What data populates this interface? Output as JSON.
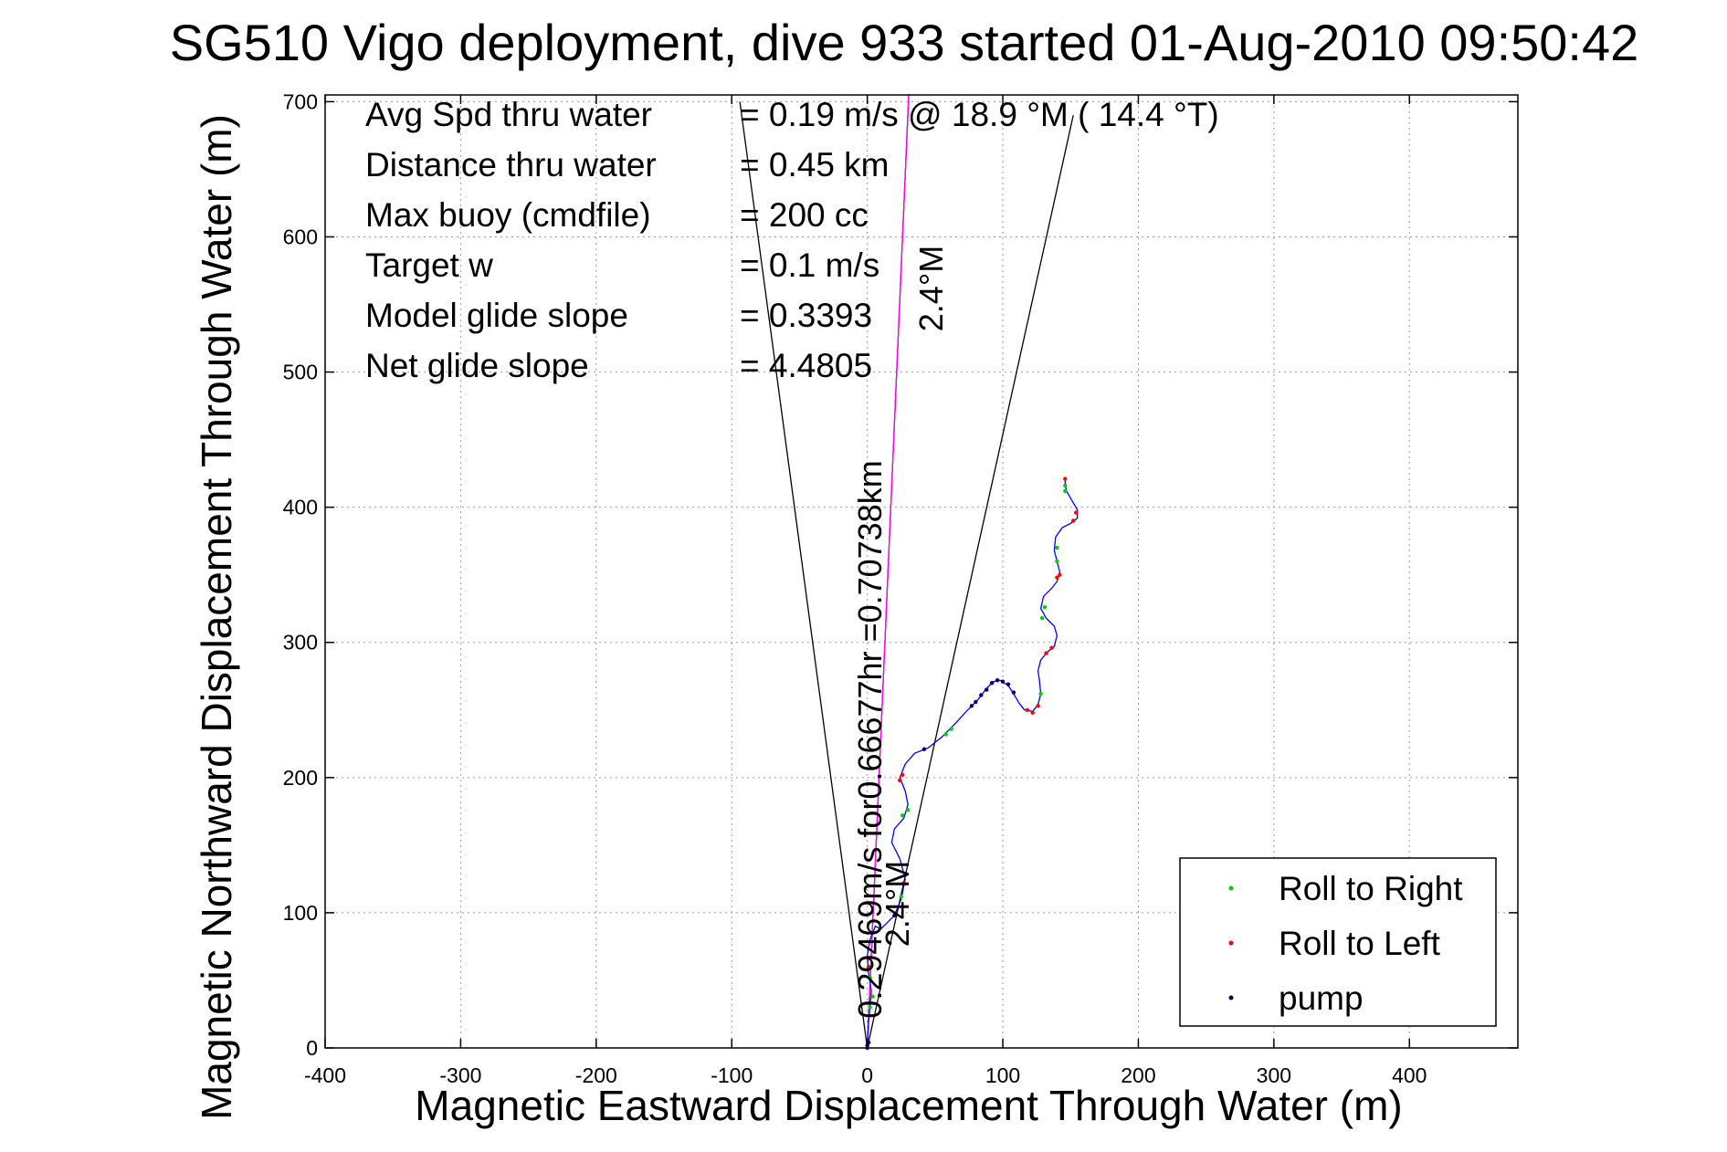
{
  "chart_data": {
    "type": "line",
    "title": "SG510 Vigo deployment, dive 933 started 01-Aug-2010 09:50:42",
    "xlabel": "Magnetic Eastward Displacement Through Water (m)",
    "ylabel": "Magnetic Northward Displacement Through Water (m)",
    "xlim": [
      -400,
      480
    ],
    "ylim": [
      0,
      705
    ],
    "xticks": [
      -400,
      -300,
      -200,
      -100,
      0,
      100,
      200,
      300,
      400
    ],
    "xtick_labels": [
      "-400",
      "-300",
      "-200",
      "-100",
      "0",
      "100",
      "200",
      "300",
      "400"
    ],
    "yticks": [
      0,
      100,
      200,
      300,
      400,
      500,
      600,
      700
    ],
    "ytick_labels": [
      "0",
      "100",
      "200",
      "300",
      "400",
      "500",
      "600",
      "700"
    ],
    "grid": true,
    "legend_position": "bottom-right",
    "stats": [
      {
        "label": "Avg Spd thru water",
        "value": "=  0.19 m/s @   18.9 °M ( 14.4 °T)"
      },
      {
        "label": "Distance thru water",
        "value": "=  0.45 km"
      },
      {
        "label": "Max buoy (cmdfile)",
        "value": "= 200 cc"
      },
      {
        "label": "Target w",
        "value": "= 0.1 m/s"
      },
      {
        "label": "Model glide slope",
        "value": "= 0.3393"
      },
      {
        "label": "Net glide slope",
        "value": "= 4.4805"
      }
    ],
    "annotations": {
      "current_label": "0.29469m/s for0.66677hr =0.70738km",
      "heading_upper": "2.4°M",
      "heading_lower": "2.4°M"
    },
    "guide_lines": [
      {
        "color": "#000000",
        "points": [
          [
            0,
            0
          ],
          [
            -94,
            700
          ]
        ]
      },
      {
        "color": "#000000",
        "points": [
          [
            0,
            0
          ],
          [
            152,
            690
          ]
        ]
      },
      {
        "color": "#000000",
        "points": [
          [
            0,
            0
          ],
          [
            36,
            830
          ]
        ]
      },
      {
        "color": "#ff00ff",
        "points": [
          [
            0,
            0
          ],
          [
            36,
            830
          ]
        ]
      }
    ],
    "series": [
      {
        "name": "track",
        "color": "#0000ff",
        "points": [
          [
            0,
            0
          ],
          [
            1,
            20
          ],
          [
            3,
            42
          ],
          [
            1,
            55
          ],
          [
            0,
            68
          ],
          [
            2,
            80
          ],
          [
            6,
            90
          ],
          [
            10,
            88
          ],
          [
            14,
            92
          ],
          [
            20,
            98
          ],
          [
            25,
            110
          ],
          [
            28,
            125
          ],
          [
            24,
            140
          ],
          [
            18,
            152
          ],
          [
            20,
            162
          ],
          [
            27,
            170
          ],
          [
            30,
            180
          ],
          [
            28,
            190
          ],
          [
            24,
            200
          ],
          [
            28,
            210
          ],
          [
            35,
            218
          ],
          [
            45,
            222
          ],
          [
            55,
            230
          ],
          [
            65,
            240
          ],
          [
            74,
            250
          ],
          [
            82,
            258
          ],
          [
            88,
            266
          ],
          [
            93,
            271
          ],
          [
            98,
            272
          ],
          [
            104,
            268
          ],
          [
            108,
            262
          ],
          [
            112,
            255
          ],
          [
            116,
            250
          ],
          [
            122,
            249
          ],
          [
            126,
            254
          ],
          [
            128,
            262
          ],
          [
            127,
            272
          ],
          [
            126,
            279
          ],
          [
            128,
            287
          ],
          [
            133,
            293
          ],
          [
            138,
            297
          ],
          [
            140,
            305
          ],
          [
            138,
            312
          ],
          [
            132,
            318
          ],
          [
            128,
            325
          ],
          [
            130,
            334
          ],
          [
            136,
            340
          ],
          [
            140,
            345
          ],
          [
            142,
            352
          ],
          [
            140,
            360
          ],
          [
            138,
            368
          ],
          [
            139,
            378
          ],
          [
            144,
            385
          ],
          [
            150,
            388
          ],
          [
            155,
            392
          ],
          [
            155,
            398
          ],
          [
            151,
            405
          ],
          [
            147,
            412
          ],
          [
            146,
            418
          ],
          [
            146,
            422
          ]
        ]
      },
      {
        "name": "Roll to Right",
        "color": "#00cc00",
        "points": [
          [
            2,
            30
          ],
          [
            4,
            38
          ],
          [
            2,
            52
          ],
          [
            25,
            112
          ],
          [
            26,
            172
          ],
          [
            30,
            176
          ],
          [
            58,
            232
          ],
          [
            62,
            236
          ],
          [
            128,
            262
          ],
          [
            129,
            318
          ],
          [
            131,
            326
          ],
          [
            140,
            360
          ],
          [
            140,
            370
          ],
          [
            146,
            412
          ],
          [
            146,
            416
          ]
        ]
      },
      {
        "name": "Roll to Left",
        "color": "#ff0000",
        "points": [
          [
            1,
            60
          ],
          [
            1,
            66
          ],
          [
            27,
            122
          ],
          [
            24,
            198
          ],
          [
            26,
            202
          ],
          [
            118,
            250
          ],
          [
            122,
            248
          ],
          [
            126,
            253
          ],
          [
            132,
            292
          ],
          [
            136,
            296
          ],
          [
            140,
            348
          ],
          [
            142,
            350
          ],
          [
            152,
            390
          ],
          [
            154,
            396
          ],
          [
            146,
            421
          ]
        ]
      },
      {
        "name": "pump",
        "color": "#000066",
        "points": [
          [
            0,
            0
          ],
          [
            0,
            2
          ],
          [
            1,
            4
          ],
          [
            20,
            98
          ],
          [
            42,
            221
          ],
          [
            77,
            253
          ],
          [
            80,
            256
          ],
          [
            84,
            261
          ],
          [
            88,
            265
          ],
          [
            92,
            270
          ],
          [
            96,
            272
          ],
          [
            100,
            271
          ],
          [
            104,
            269
          ],
          [
            108,
            263
          ]
        ]
      }
    ],
    "legend": [
      {
        "label": "Roll to Right",
        "color": "#00cc00"
      },
      {
        "label": "Roll to Left",
        "color": "#ff0000"
      },
      {
        "label": "pump",
        "color": "#000066"
      }
    ]
  }
}
